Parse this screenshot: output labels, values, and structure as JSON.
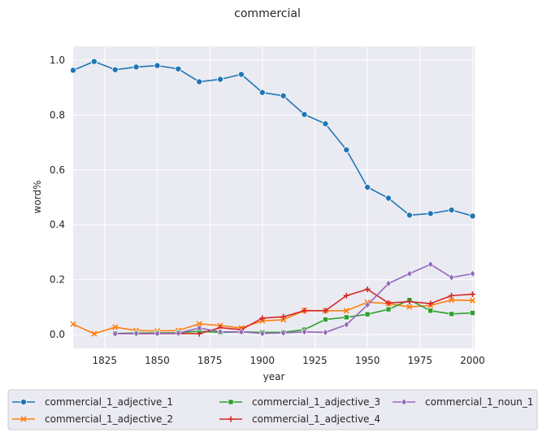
{
  "chart_data": {
    "type": "line",
    "title": "commercial",
    "xlabel": "year",
    "ylabel": "word%",
    "xlim": [
      1810,
      2001
    ],
    "ylim": [
      -0.05,
      1.05
    ],
    "xticks": [
      1825,
      1850,
      1875,
      1900,
      1925,
      1950,
      1975,
      2000
    ],
    "yticks": [
      0.0,
      0.2,
      0.4,
      0.6,
      0.8,
      1.0
    ],
    "grid": true,
    "legend_position": "bottom",
    "series": [
      {
        "name": "commercial_1_adjective_1",
        "color": "#1f77b4",
        "marker": "circle",
        "x": [
          1810,
          1820,
          1830,
          1840,
          1850,
          1860,
          1870,
          1880,
          1890,
          1900,
          1910,
          1920,
          1930,
          1940,
          1950,
          1960,
          1970,
          1980,
          1990,
          2000
        ],
        "y": [
          0.963,
          0.995,
          0.965,
          0.975,
          0.98,
          0.968,
          0.921,
          0.93,
          0.948,
          0.882,
          0.87,
          0.802,
          0.768,
          0.673,
          0.537,
          0.497,
          0.435,
          0.441,
          0.454,
          0.432
        ]
      },
      {
        "name": "commercial_1_adjective_2",
        "color": "#ff7f0e",
        "marker": "x",
        "x": [
          1810,
          1820,
          1830,
          1840,
          1850,
          1860,
          1870,
          1880,
          1890,
          1900,
          1910,
          1920,
          1930,
          1940,
          1950,
          1960,
          1970,
          1980,
          1990,
          2000
        ],
        "y": [
          0.038,
          0.003,
          0.027,
          0.015,
          0.013,
          0.015,
          0.039,
          0.033,
          0.024,
          0.05,
          0.054,
          0.088,
          0.087,
          0.087,
          0.118,
          0.113,
          0.101,
          0.106,
          0.126,
          0.124
        ]
      },
      {
        "name": "commercial_1_adjective_3",
        "color": "#2ca02c",
        "marker": "square",
        "x": [
          1830,
          1840,
          1850,
          1860,
          1870,
          1880,
          1890,
          1900,
          1910,
          1920,
          1930,
          1940,
          1950,
          1960,
          1970,
          1980,
          1990,
          2000
        ],
        "y": [
          0.004,
          0.006,
          0.006,
          0.007,
          0.012,
          0.008,
          0.01,
          0.008,
          0.008,
          0.018,
          0.055,
          0.063,
          0.074,
          0.092,
          0.126,
          0.087,
          0.075,
          0.079
        ]
      },
      {
        "name": "commercial_1_adjective_4",
        "color": "#d62728",
        "marker": "plus",
        "x": [
          1830,
          1840,
          1850,
          1860,
          1870,
          1880,
          1890,
          1900,
          1910,
          1920,
          1930,
          1940,
          1950,
          1960,
          1970,
          1980,
          1990,
          2000
        ],
        "y": [
          0.004,
          0.003,
          0.003,
          0.004,
          0.003,
          0.025,
          0.018,
          0.06,
          0.065,
          0.087,
          0.087,
          0.142,
          0.165,
          0.115,
          0.12,
          0.113,
          0.142,
          0.147
        ]
      },
      {
        "name": "commercial_1_noun_1",
        "color": "#9467bd",
        "marker": "diamond",
        "x": [
          1830,
          1840,
          1850,
          1860,
          1870,
          1880,
          1890,
          1900,
          1910,
          1920,
          1930,
          1940,
          1950,
          1960,
          1970,
          1980,
          1990,
          2000
        ],
        "y": [
          0.003,
          0.004,
          0.004,
          0.005,
          0.024,
          0.01,
          0.01,
          0.004,
          0.006,
          0.01,
          0.008,
          0.036,
          0.108,
          0.186,
          0.222,
          0.256,
          0.208,
          0.222
        ]
      }
    ]
  }
}
